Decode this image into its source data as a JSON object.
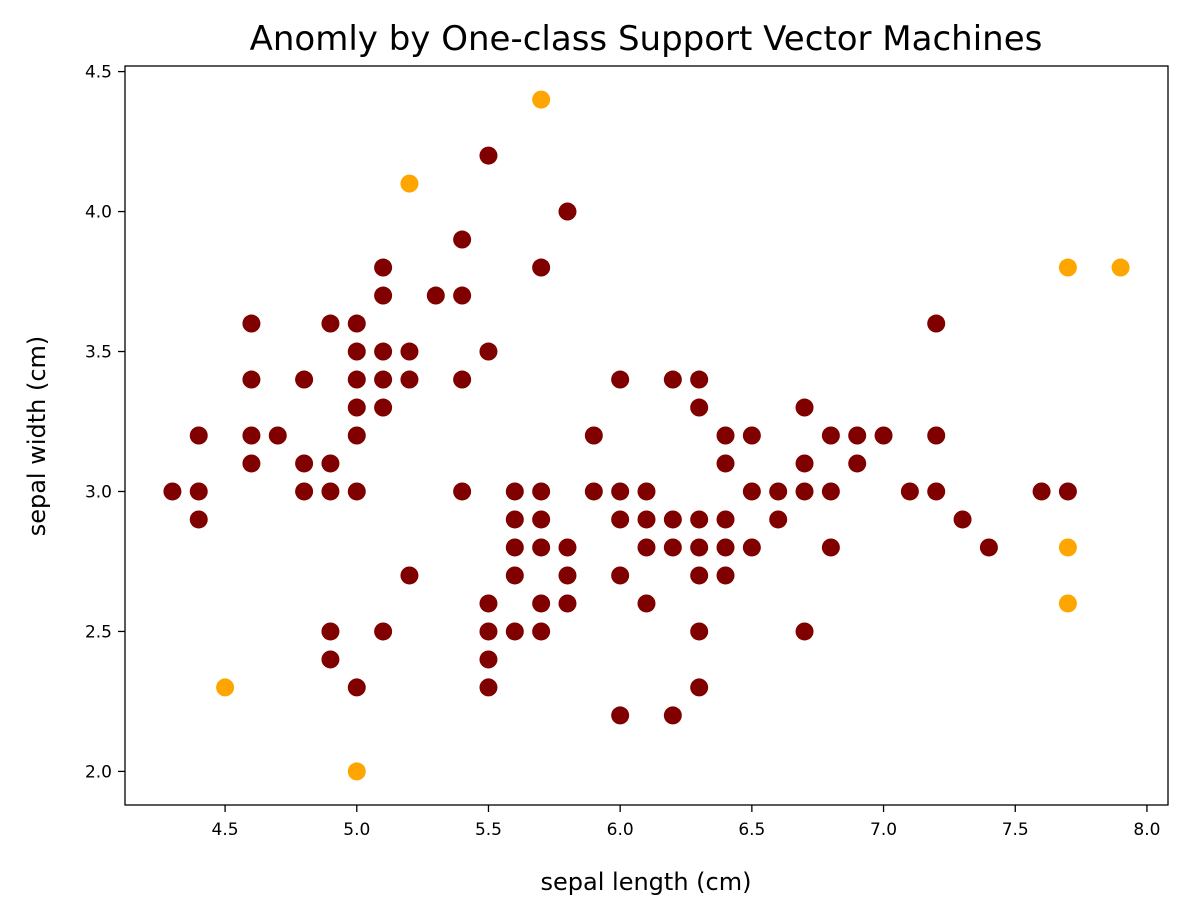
{
  "chart_data": {
    "type": "scatter",
    "title": "Anomly by One-class Support Vector Machines",
    "xlabel": "sepal length (cm)",
    "ylabel": "sepal width (cm)",
    "xlim": [
      4.12,
      8.08
    ],
    "ylim": [
      1.88,
      4.52
    ],
    "xticks": [
      4.5,
      5.0,
      5.5,
      6.0,
      6.5,
      7.0,
      7.5,
      8.0
    ],
    "xtick_labels": [
      "4.5",
      "5.0",
      "5.5",
      "6.0",
      "6.5",
      "7.0",
      "7.5",
      "8.0"
    ],
    "yticks": [
      2.0,
      2.5,
      3.0,
      3.5,
      4.0,
      4.5
    ],
    "ytick_labels": [
      "2.0",
      "2.5",
      "3.0",
      "3.5",
      "4.0",
      "4.5"
    ],
    "grid": false,
    "colors": {
      "inlier": "#800000",
      "outlier": "#FFA500"
    },
    "series": [
      {
        "color": "#800000",
        "points": [
          [
            4.3,
            3.0
          ],
          [
            4.4,
            3.0
          ],
          [
            4.4,
            3.2
          ],
          [
            4.4,
            2.9
          ],
          [
            4.6,
            3.6
          ],
          [
            4.6,
            3.4
          ],
          [
            4.6,
            3.2
          ],
          [
            4.6,
            3.1
          ],
          [
            4.7,
            3.2
          ],
          [
            4.8,
            3.4
          ],
          [
            4.8,
            3.1
          ],
          [
            4.8,
            3.0
          ],
          [
            4.9,
            3.6
          ],
          [
            4.9,
            3.1
          ],
          [
            4.9,
            3.0
          ],
          [
            4.9,
            2.5
          ],
          [
            4.9,
            2.4
          ],
          [
            5.0,
            3.6
          ],
          [
            5.0,
            3.5
          ],
          [
            5.0,
            3.4
          ],
          [
            5.0,
            3.3
          ],
          [
            5.0,
            3.2
          ],
          [
            5.0,
            3.0
          ],
          [
            5.0,
            2.3
          ],
          [
            5.1,
            3.8
          ],
          [
            5.1,
            3.7
          ],
          [
            5.1,
            3.5
          ],
          [
            5.1,
            3.4
          ],
          [
            5.1,
            3.3
          ],
          [
            5.1,
            2.5
          ],
          [
            5.2,
            3.5
          ],
          [
            5.2,
            3.4
          ],
          [
            5.2,
            2.7
          ],
          [
            5.3,
            3.7
          ],
          [
            5.4,
            3.9
          ],
          [
            5.4,
            3.7
          ],
          [
            5.4,
            3.4
          ],
          [
            5.4,
            3.0
          ],
          [
            5.5,
            4.2
          ],
          [
            5.5,
            3.5
          ],
          [
            5.5,
            2.6
          ],
          [
            5.5,
            2.5
          ],
          [
            5.5,
            2.4
          ],
          [
            5.5,
            2.3
          ],
          [
            5.6,
            3.0
          ],
          [
            5.6,
            2.9
          ],
          [
            5.6,
            2.8
          ],
          [
            5.6,
            2.7
          ],
          [
            5.6,
            2.5
          ],
          [
            5.7,
            3.8
          ],
          [
            5.7,
            3.0
          ],
          [
            5.7,
            2.9
          ],
          [
            5.7,
            2.8
          ],
          [
            5.7,
            2.6
          ],
          [
            5.7,
            2.5
          ],
          [
            5.8,
            4.0
          ],
          [
            5.8,
            2.8
          ],
          [
            5.8,
            2.7
          ],
          [
            5.8,
            2.6
          ],
          [
            5.9,
            3.2
          ],
          [
            5.9,
            3.0
          ],
          [
            6.0,
            3.4
          ],
          [
            6.0,
            3.0
          ],
          [
            6.0,
            2.9
          ],
          [
            6.0,
            2.7
          ],
          [
            6.0,
            2.2
          ],
          [
            6.1,
            3.0
          ],
          [
            6.1,
            2.9
          ],
          [
            6.1,
            2.8
          ],
          [
            6.1,
            2.6
          ],
          [
            6.2,
            3.4
          ],
          [
            6.2,
            2.9
          ],
          [
            6.2,
            2.8
          ],
          [
            6.2,
            2.2
          ],
          [
            6.3,
            3.4
          ],
          [
            6.3,
            3.3
          ],
          [
            6.3,
            2.9
          ],
          [
            6.3,
            2.8
          ],
          [
            6.3,
            2.7
          ],
          [
            6.3,
            2.5
          ],
          [
            6.3,
            2.3
          ],
          [
            6.4,
            3.2
          ],
          [
            6.4,
            3.1
          ],
          [
            6.4,
            2.9
          ],
          [
            6.4,
            2.8
          ],
          [
            6.4,
            2.7
          ],
          [
            6.5,
            3.2
          ],
          [
            6.5,
            3.0
          ],
          [
            6.5,
            2.8
          ],
          [
            6.6,
            3.0
          ],
          [
            6.6,
            2.9
          ],
          [
            6.7,
            3.3
          ],
          [
            6.7,
            3.1
          ],
          [
            6.7,
            3.0
          ],
          [
            6.7,
            2.5
          ],
          [
            6.8,
            3.2
          ],
          [
            6.8,
            3.0
          ],
          [
            6.8,
            2.8
          ],
          [
            6.9,
            3.2
          ],
          [
            6.9,
            3.1
          ],
          [
            7.0,
            3.2
          ],
          [
            7.1,
            3.0
          ],
          [
            7.2,
            3.6
          ],
          [
            7.2,
            3.2
          ],
          [
            7.2,
            3.0
          ],
          [
            7.3,
            2.9
          ],
          [
            7.4,
            2.8
          ],
          [
            7.6,
            3.0
          ],
          [
            7.7,
            3.0
          ]
        ]
      },
      {
        "color": "#FFA500",
        "points": [
          [
            5.7,
            4.4
          ],
          [
            5.2,
            4.1
          ],
          [
            7.7,
            3.8
          ],
          [
            7.9,
            3.8
          ],
          [
            7.7,
            2.8
          ],
          [
            7.7,
            2.6
          ],
          [
            4.5,
            2.3
          ],
          [
            5.0,
            2.0
          ]
        ]
      }
    ]
  }
}
